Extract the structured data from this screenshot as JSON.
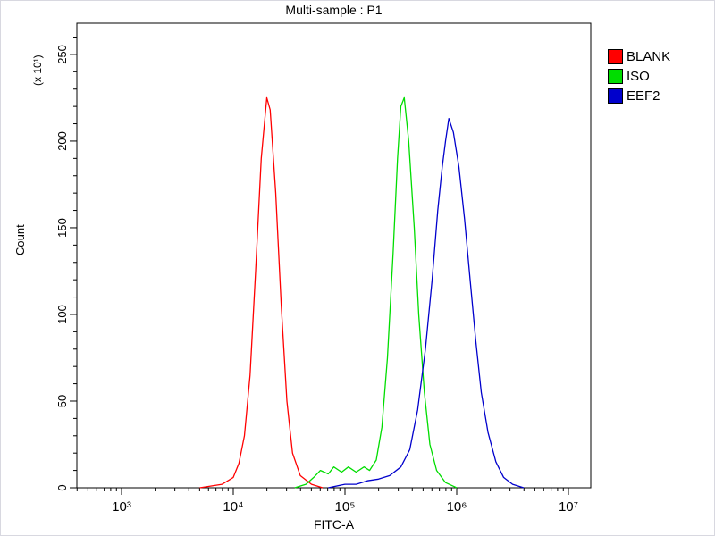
{
  "title": "Multi-sample : P1",
  "axes": {
    "xlabel": "FITC-A",
    "ylabel": "Count",
    "y_multiplier": "(x 10¹)"
  },
  "legend": {
    "items": [
      {
        "label": "BLANK",
        "color": "#ff0000"
      },
      {
        "label": "ISO",
        "color": "#00dd00"
      },
      {
        "label": "EEF2",
        "color": "#0000cc"
      }
    ]
  },
  "chart_data": {
    "type": "line",
    "title": "Multi-sample : P1",
    "xlabel": "FITC-A",
    "ylabel": "Count (x 10^1)",
    "x_scale": "log10",
    "xlim_log10": [
      2.6,
      7.2
    ],
    "ylim": [
      0,
      268
    ],
    "x_ticks_log10": [
      3,
      4,
      5,
      6,
      7
    ],
    "x_tick_labels": [
      "10³",
      "10⁴",
      "10⁵",
      "10⁶",
      "10⁷"
    ],
    "y_ticks": [
      0,
      50,
      100,
      150,
      200,
      250
    ],
    "grid": false,
    "legend_position": "right-top",
    "series": [
      {
        "name": "BLANK",
        "color": "#ff0000",
        "peak_x": 20000,
        "peak_count": 225,
        "points": [
          [
            3.7,
            0
          ],
          [
            3.9,
            2
          ],
          [
            4.0,
            6
          ],
          [
            4.05,
            14
          ],
          [
            4.1,
            30
          ],
          [
            4.15,
            65
          ],
          [
            4.2,
            125
          ],
          [
            4.25,
            190
          ],
          [
            4.3,
            225
          ],
          [
            4.33,
            218
          ],
          [
            4.38,
            170
          ],
          [
            4.43,
            105
          ],
          [
            4.48,
            50
          ],
          [
            4.53,
            20
          ],
          [
            4.6,
            7
          ],
          [
            4.7,
            2
          ],
          [
            4.8,
            0
          ]
        ]
      },
      {
        "name": "ISO",
        "color": "#00dd00",
        "peak_x": 330000,
        "peak_count": 225,
        "points": [
          [
            4.55,
            0
          ],
          [
            4.65,
            2
          ],
          [
            4.72,
            6
          ],
          [
            4.78,
            10
          ],
          [
            4.85,
            8
          ],
          [
            4.9,
            12
          ],
          [
            4.97,
            9
          ],
          [
            5.03,
            12
          ],
          [
            5.1,
            9
          ],
          [
            5.17,
            12
          ],
          [
            5.22,
            10
          ],
          [
            5.28,
            16
          ],
          [
            5.33,
            35
          ],
          [
            5.38,
            75
          ],
          [
            5.43,
            135
          ],
          [
            5.47,
            190
          ],
          [
            5.5,
            220
          ],
          [
            5.53,
            225
          ],
          [
            5.57,
            200
          ],
          [
            5.62,
            150
          ],
          [
            5.66,
            100
          ],
          [
            5.71,
            55
          ],
          [
            5.76,
            25
          ],
          [
            5.82,
            10
          ],
          [
            5.9,
            3
          ],
          [
            6.0,
            0
          ]
        ]
      },
      {
        "name": "EEF2",
        "color": "#0000cc",
        "peak_x": 850000,
        "peak_count": 213,
        "points": [
          [
            4.85,
            0
          ],
          [
            5.0,
            2
          ],
          [
            5.1,
            2
          ],
          [
            5.2,
            4
          ],
          [
            5.3,
            5
          ],
          [
            5.4,
            7
          ],
          [
            5.5,
            12
          ],
          [
            5.58,
            22
          ],
          [
            5.65,
            45
          ],
          [
            5.72,
            80
          ],
          [
            5.78,
            120
          ],
          [
            5.83,
            160
          ],
          [
            5.87,
            185
          ],
          [
            5.9,
            200
          ],
          [
            5.93,
            213
          ],
          [
            5.97,
            205
          ],
          [
            6.02,
            185
          ],
          [
            6.07,
            155
          ],
          [
            6.12,
            120
          ],
          [
            6.17,
            85
          ],
          [
            6.22,
            55
          ],
          [
            6.28,
            32
          ],
          [
            6.35,
            15
          ],
          [
            6.42,
            6
          ],
          [
            6.5,
            2
          ],
          [
            6.6,
            0
          ]
        ]
      }
    ]
  }
}
